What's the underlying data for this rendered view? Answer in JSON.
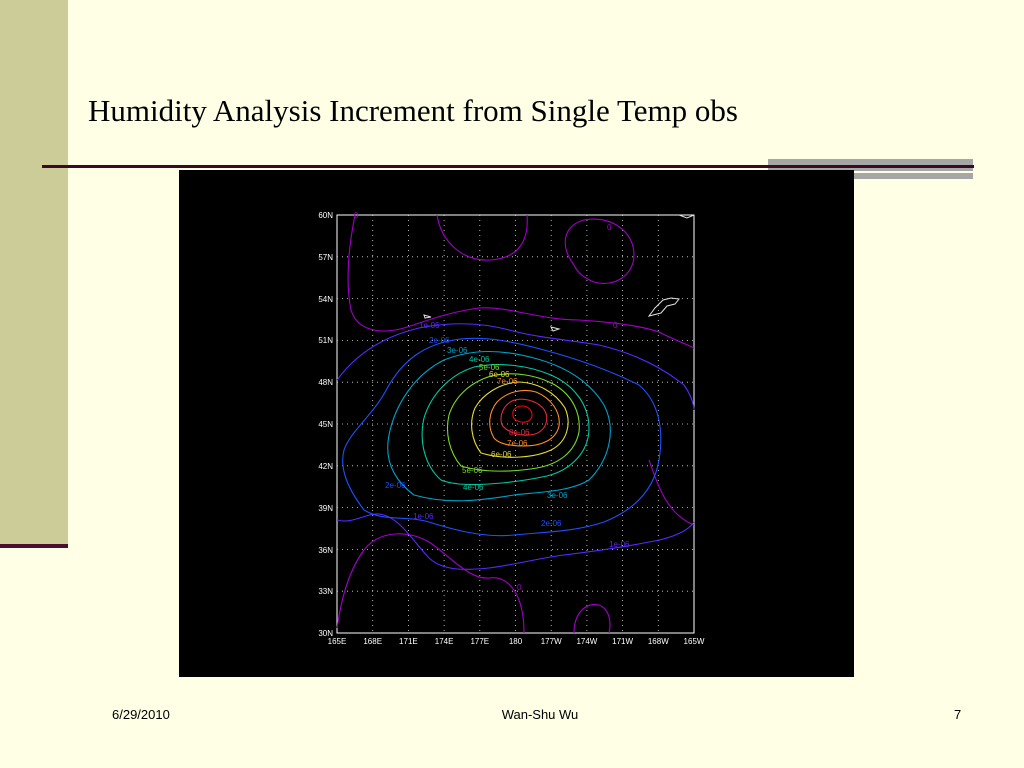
{
  "slide": {
    "title": "Humidity Analysis Increment from Single Temp obs",
    "footer": {
      "date": "6/29/2010",
      "author": "Wan-Shu Wu",
      "page": "7"
    }
  },
  "map": {
    "lat_labels": [
      "60N",
      "57N",
      "54N",
      "51N",
      "48N",
      "45N",
      "42N",
      "39N",
      "36N",
      "33N",
      "30N"
    ],
    "lon_labels": [
      "165E",
      "168E",
      "171E",
      "174E",
      "177E",
      "180",
      "177W",
      "174W",
      "171W",
      "168W",
      "165W"
    ],
    "contour_labels": {
      "c0a": "0",
      "c0b": "0",
      "c0c": "0",
      "c0d": "0",
      "c1a": "1e-06",
      "c1b": "1e-06",
      "c1c": "1e-06",
      "c2a": "2e-06",
      "c2b": "2e-06",
      "c2c": "2e-06",
      "c3a": "3e-06",
      "c3b": "3e-06",
      "c4a": "4e-06",
      "c4b": "4e-06",
      "c5a": "5e-06",
      "c5b": "5e-06",
      "c6a": "6e-06",
      "c6b": "6e-06",
      "c7a": "7e-06",
      "c7b": "7e-06",
      "c8a": "8e-06"
    },
    "colors": {
      "c0": "#a000c8",
      "c1": "#5a28ff",
      "c2": "#1e50ff",
      "c3": "#00a0c8",
      "c4": "#00c8a0",
      "c5": "#78dc28",
      "c6": "#e6dc32",
      "c7": "#ff8c28",
      "c8": "#e6283c",
      "c9": "#ff0000"
    }
  }
}
